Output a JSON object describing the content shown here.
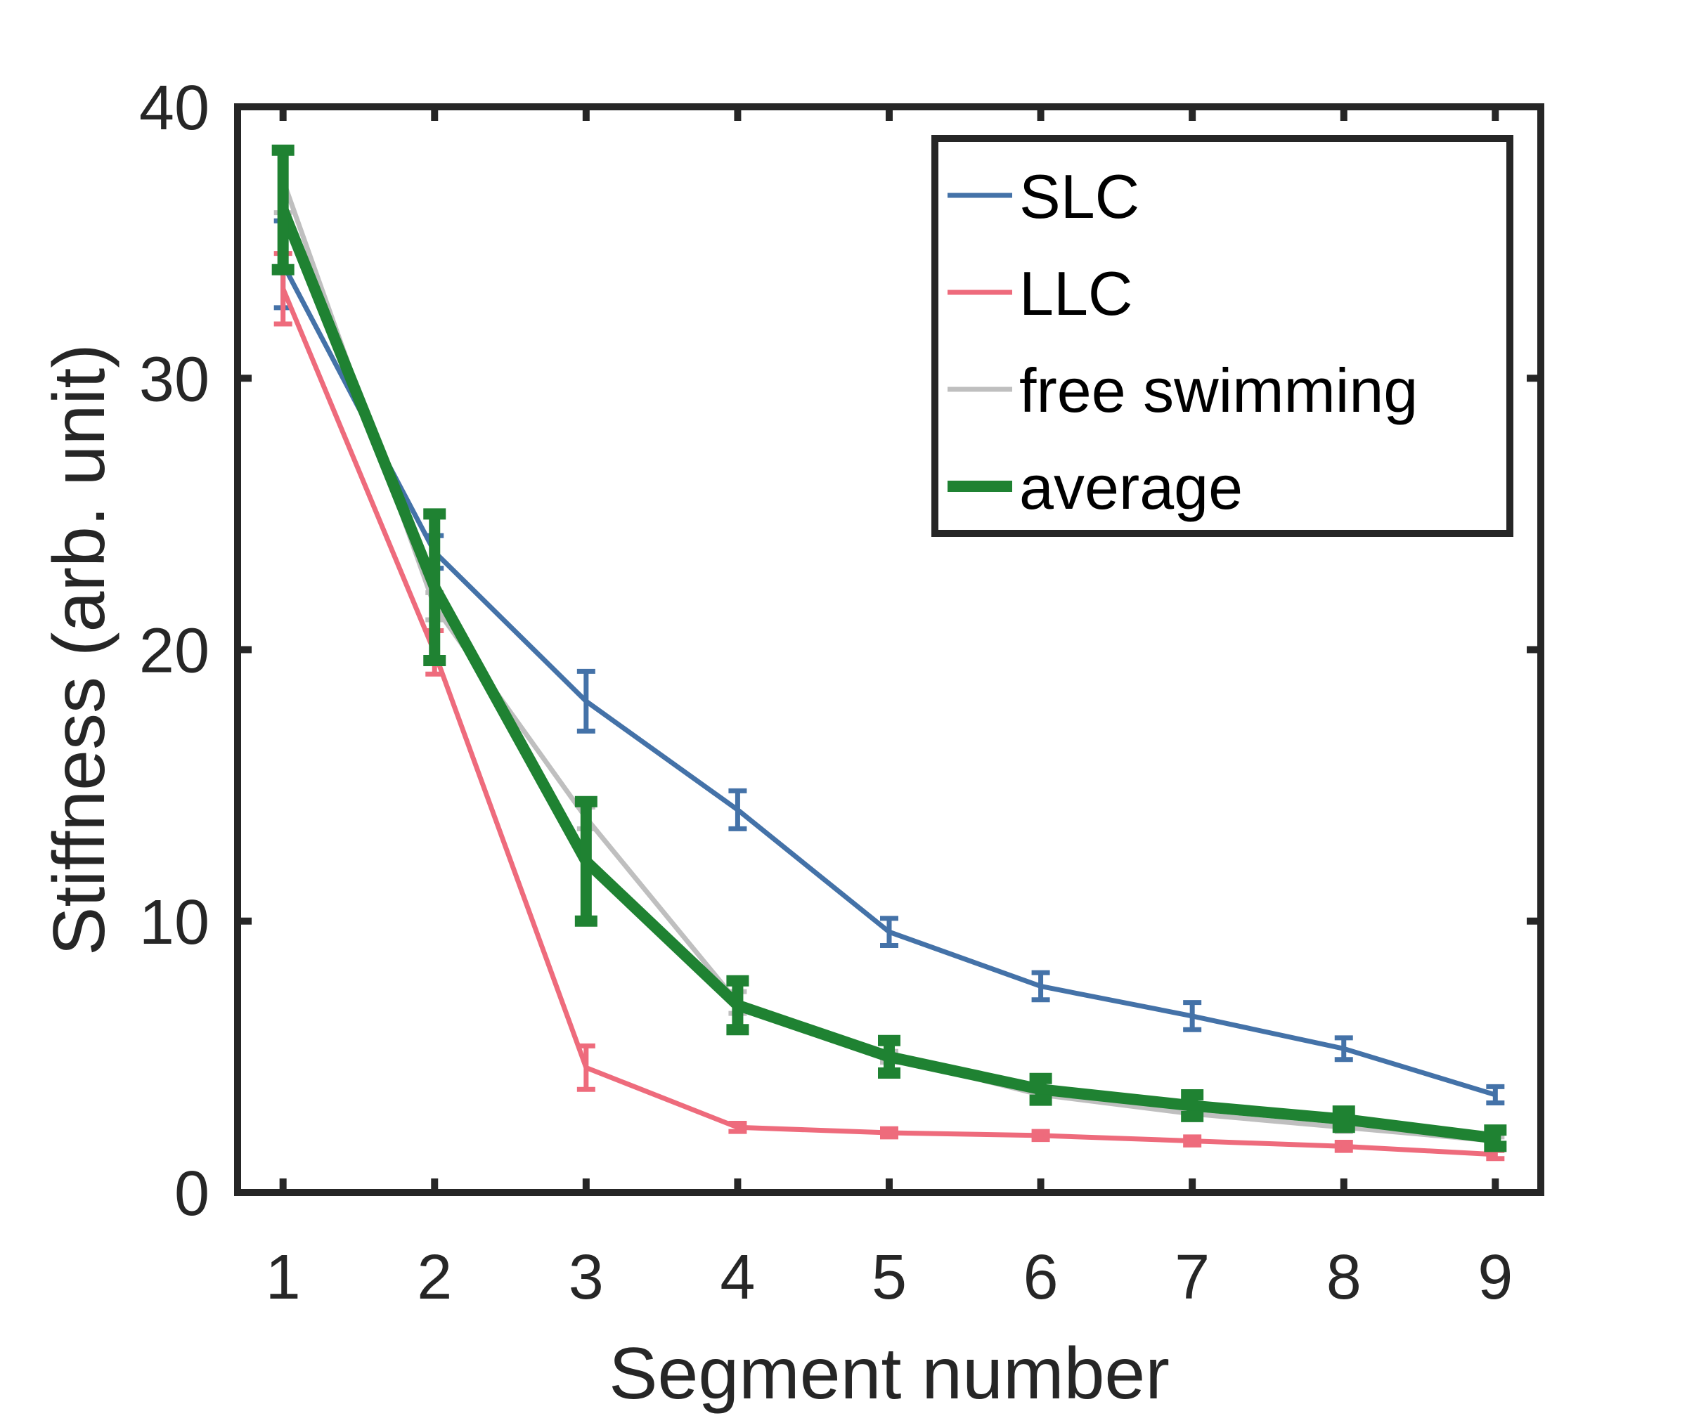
{
  "chart_data": {
    "type": "line",
    "title": "",
    "xlabel": "Segment number",
    "ylabel": "Stiffness (arb. unit)",
    "x": [
      1,
      2,
      3,
      4,
      5,
      6,
      7,
      8,
      9
    ],
    "xlim": [
      0.7,
      9.3
    ],
    "ylim": [
      0,
      40
    ],
    "xticks": [
      1,
      2,
      3,
      4,
      5,
      6,
      7,
      8,
      9
    ],
    "yticks": [
      0,
      10,
      20,
      30,
      40
    ],
    "grid": false,
    "legend_position": "top-right",
    "series": [
      {
        "name": "SLC",
        "color": "#4472a8",
        "line_weight": "thin",
        "values": [
          34.2,
          23.6,
          18.1,
          14.1,
          9.6,
          7.6,
          6.5,
          5.3,
          3.6
        ],
        "errors": [
          1.6,
          0.6,
          1.1,
          0.7,
          0.5,
          0.5,
          0.5,
          0.4,
          0.3
        ]
      },
      {
        "name": "LLC",
        "color": "#ee6b7c",
        "line_weight": "thin",
        "values": [
          33.3,
          19.9,
          4.6,
          2.4,
          2.2,
          2.1,
          1.9,
          1.7,
          1.4
        ],
        "errors": [
          1.3,
          0.8,
          0.8,
          0.15,
          0.15,
          0.15,
          0.15,
          0.15,
          0.15
        ]
      },
      {
        "name": "free swimming",
        "color": "#bfbfbf",
        "line_weight": "thin",
        "values": [
          37.3,
          21.6,
          13.8,
          7.0,
          5.0,
          3.6,
          2.9,
          2.4,
          1.9
        ],
        "errors": [
          1.2,
          0.5,
          0.4,
          0.4,
          0.2,
          0.2,
          0.2,
          0.15,
          0.15
        ]
      },
      {
        "name": "average",
        "color": "#1f8232",
        "line_weight": "thick",
        "values": [
          36.2,
          22.3,
          12.2,
          6.9,
          5.0,
          3.8,
          3.2,
          2.7,
          2.0
        ],
        "errors": [
          2.2,
          2.7,
          2.2,
          0.9,
          0.6,
          0.4,
          0.4,
          0.3,
          0.3
        ]
      }
    ]
  }
}
